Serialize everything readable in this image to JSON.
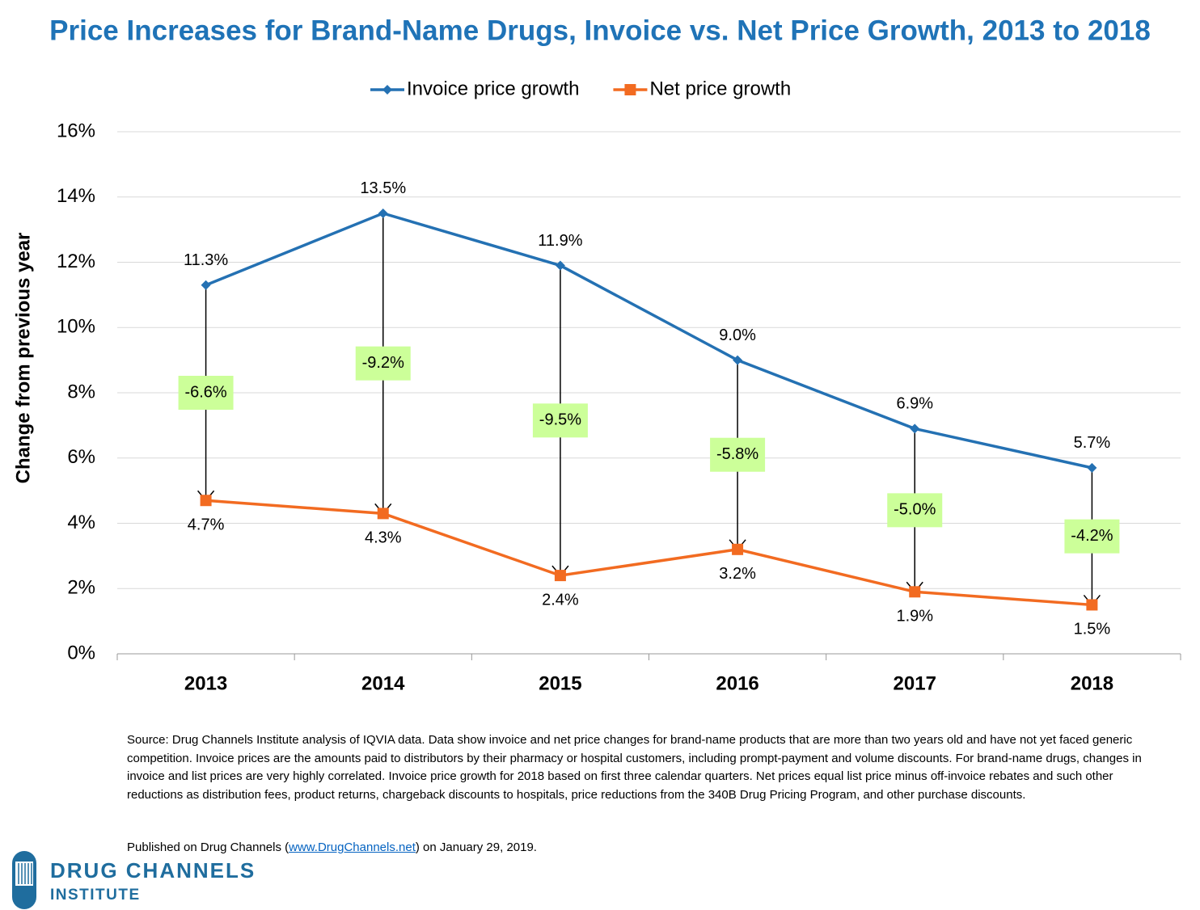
{
  "chart_data": {
    "type": "line",
    "title": "Price Increases for Brand-Name Drugs, Invoice vs. Net Price Growth, 2013 to 2018",
    "y_label": "Change from previous year",
    "categories": [
      "2013",
      "2014",
      "2015",
      "2016",
      "2017",
      "2018"
    ],
    "series": [
      {
        "name": "Invoice price growth",
        "color": "#2471b3",
        "marker": "diamond",
        "values": [
          11.3,
          13.5,
          11.9,
          9.0,
          6.9,
          5.7
        ],
        "value_labels": [
          "11.3%",
          "13.5%",
          "11.9%",
          "9.0%",
          "6.9%",
          "5.7%"
        ]
      },
      {
        "name": "Net price growth",
        "color": "#f26b21",
        "marker": "square",
        "values": [
          4.7,
          4.3,
          2.4,
          3.2,
          1.9,
          1.5
        ],
        "value_labels": [
          "4.7%",
          "4.3%",
          "2.4%",
          "3.2%",
          "1.9%",
          "1.5%"
        ]
      }
    ],
    "differences": {
      "color": "#ccff99",
      "values": [
        -6.6,
        -9.2,
        -9.5,
        -5.8,
        -5.0,
        -4.2
      ],
      "value_labels": [
        "-6.6%",
        "-9.2%",
        "-9.5%",
        "-5.8%",
        "-5.0%",
        "-4.2%"
      ]
    },
    "ylim": [
      0,
      16
    ],
    "yticks": [
      {
        "value": 0,
        "label": "0%"
      },
      {
        "value": 2,
        "label": "2%"
      },
      {
        "value": 4,
        "label": "4%"
      },
      {
        "value": 6,
        "label": "6%"
      },
      {
        "value": 8,
        "label": "8%"
      },
      {
        "value": 10,
        "label": "10%"
      },
      {
        "value": 12,
        "label": "12%"
      },
      {
        "value": 14,
        "label": "14%"
      },
      {
        "value": 16,
        "label": "16%"
      }
    ],
    "grid": true,
    "legend": "top"
  },
  "footer": {
    "source": "Source: Drug Channels Institute analysis of  IQVIA data. Data show invoice and net price changes for brand-name products that are more than two years old and have not yet faced generic competition.  Invoice prices are the amounts paid to distributors by their pharmacy or hospital customers, including prompt-payment and volume discounts. For brand-name drugs, changes in invoice and list prices are very highly correlated. Invoice price growth for 2018 based on first three calendar quarters. Net prices equal list price minus off-invoice rebates and such other reductions as distribution fees, product returns, chargeback discounts to hospitals, price reductions from the 340B Drug Pricing Program, and other purchase discounts.",
    "published_before": "Published on Drug Channels (",
    "published_link": "www.DrugChannels.net",
    "published_after": ") on January 29, 2019.",
    "logo_line1": "DRUG CHANNELS",
    "logo_line2": "INSTITUTE"
  }
}
